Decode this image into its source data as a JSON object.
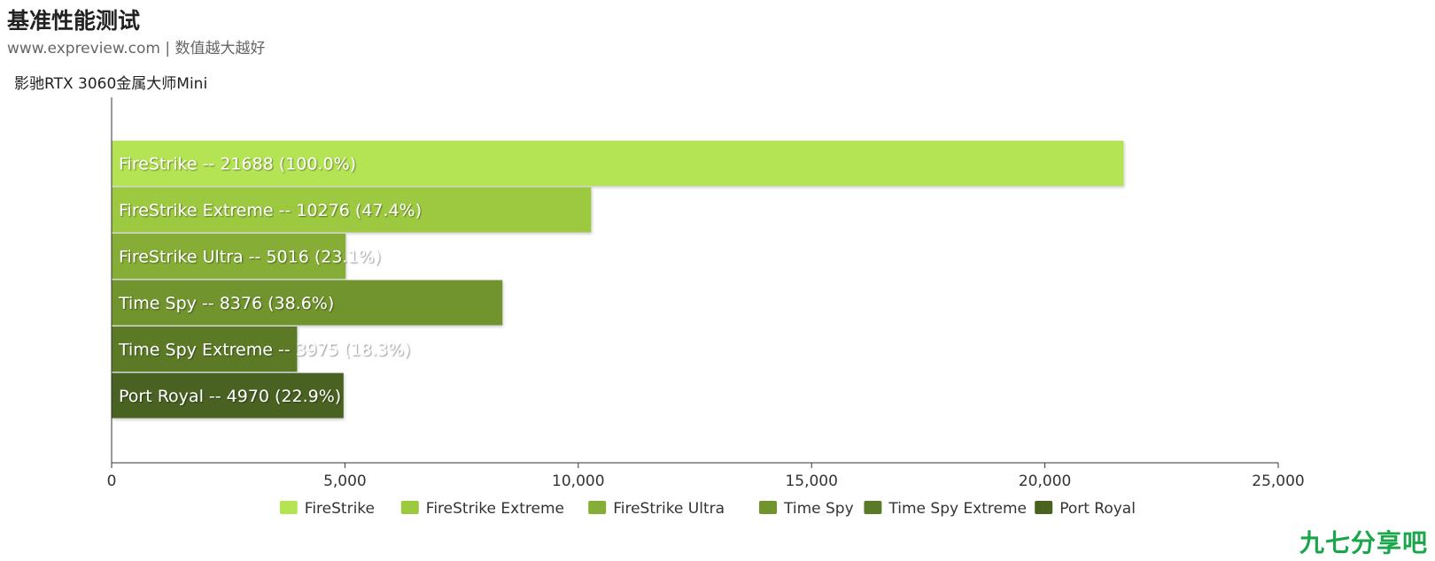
{
  "header": {
    "title": "基准性能测试",
    "subtitle": "www.expreview.com | 数值越大越好",
    "series_label": "影驰RTX 3060金属大师Mini"
  },
  "watermark": "九七分享吧",
  "chart_data": {
    "type": "bar",
    "orientation": "horizontal",
    "categories": [
      "FireStrike",
      "FireStrike Extreme",
      "FireStrike Ultra",
      "Time Spy",
      "Time Spy Extreme",
      "Port Royal"
    ],
    "values": [
      21688,
      10276,
      5016,
      8376,
      3975,
      4970
    ],
    "percent_labels": [
      "100.0%",
      "47.4%",
      "23.1%",
      "38.6%",
      "18.3%",
      "22.9%"
    ],
    "bar_labels": [
      "FireStrike  --  21688 (100.0%)",
      "FireStrike Extreme  --  10276 (47.4%)",
      "FireStrike Ultra  --  5016 (23.1%)",
      "Time Spy  --  8376 (38.6%)",
      "Time Spy Extreme  --  3975 (18.3%)",
      "Port Royal  --  4970 (22.9%)"
    ],
    "colors": [
      "#b4e452",
      "#9dc93f",
      "#86ad36",
      "#71942e",
      "#5b7a27",
      "#4a6220"
    ],
    "xlim": [
      0,
      25000
    ],
    "x_ticks": [
      0,
      5000,
      10000,
      15000,
      20000,
      25000
    ],
    "x_tick_labels": [
      "0",
      "5,000",
      "10,000",
      "15,000",
      "20,000",
      "25,000"
    ],
    "legend": {
      "position": "bottom",
      "entries": [
        "FireStrike",
        "FireStrike Extreme",
        "FireStrike Ultra",
        "Time Spy",
        "Time Spy Extreme",
        "Port Royal"
      ]
    },
    "grid": false
  }
}
